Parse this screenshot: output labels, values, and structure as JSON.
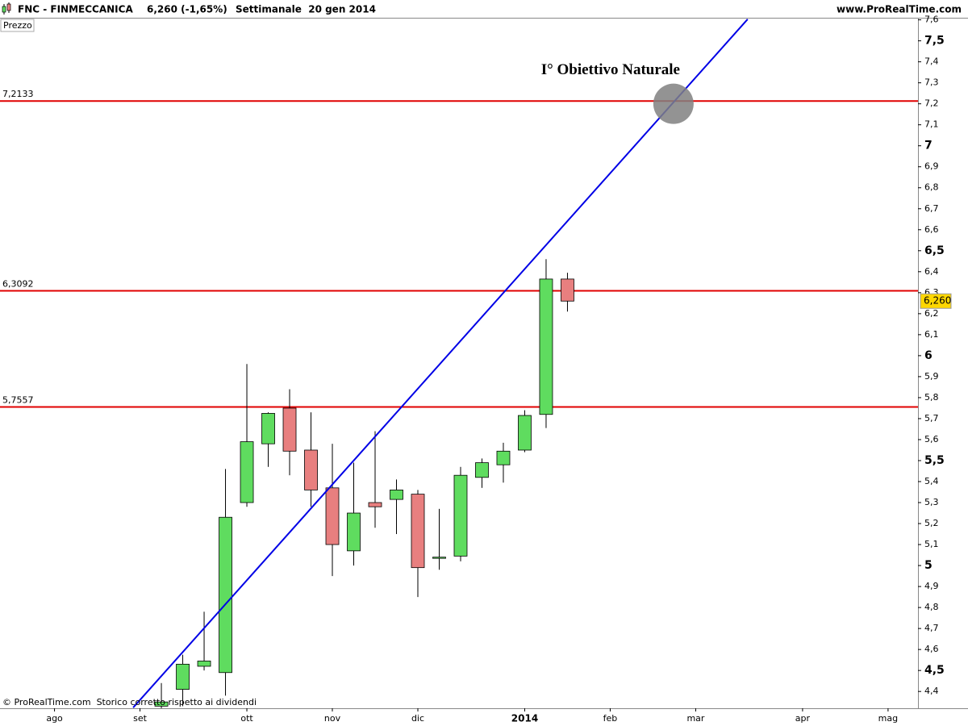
{
  "chart_data": {
    "type": "candlestick",
    "symbol": "FNC - FINMECCANICA",
    "quote": "6,260 (-1,65%)",
    "period": "Settimanale  20 gen 2014",
    "source": "www.ProRealTime.com",
    "y_label": "Prezzo",
    "footer": "© ProRealTime.com  Storico corretto rispetto ai dividendi",
    "categories": [
      null,
      null,
      null,
      null,
      null,
      null,
      null,
      null,
      null,
      null,
      null,
      null,
      null,
      null,
      null,
      null,
      null,
      null,
      null,
      null
    ],
    "open": [
      4.33,
      4.41,
      4.52,
      4.49,
      5.3,
      5.58,
      5.75,
      5.55,
      5.37,
      5.07,
      5.3,
      5.315,
      5.34,
      5.035,
      5.045,
      5.42,
      5.48,
      5.55,
      5.72,
      6.365
    ],
    "high": [
      4.44,
      4.575,
      4.78,
      5.46,
      5.96,
      5.73,
      5.84,
      5.73,
      5.58,
      5.49,
      5.64,
      5.41,
      5.36,
      5.27,
      5.47,
      5.51,
      5.585,
      5.74,
      6.46,
      6.395
    ],
    "low": [
      4.3,
      4.33,
      4.5,
      4.38,
      5.28,
      5.47,
      5.43,
      5.28,
      4.95,
      5.0,
      5.18,
      5.15,
      4.85,
      4.98,
      5.02,
      5.37,
      5.395,
      5.54,
      5.655,
      6.21
    ],
    "close": [
      4.35,
      4.53,
      4.545,
      5.23,
      5.59,
      5.725,
      5.545,
      5.36,
      5.1,
      5.25,
      5.28,
      5.36,
      4.99,
      5.04,
      5.43,
      5.49,
      5.545,
      5.715,
      6.365,
      6.26
    ],
    "up_color": "#5fdc5f",
    "down_color": "#e87f7f",
    "xlim": [
      -7.55,
      35.4
    ],
    "xticks": [
      {
        "value": -5,
        "label": "ago"
      },
      {
        "value": -1,
        "label": "set"
      },
      {
        "value": 4,
        "label": "ott"
      },
      {
        "value": 8,
        "label": "nov"
      },
      {
        "value": 12,
        "label": "dic"
      },
      {
        "value": 17,
        "label": "2014"
      },
      {
        "value": 21,
        "label": "feb"
      },
      {
        "value": 25,
        "label": "mar"
      },
      {
        "value": 30,
        "label": "apr"
      },
      {
        "value": 34,
        "label": "mag"
      }
    ],
    "ylim": [
      4.32,
      7.61
    ],
    "yticks": [
      {
        "value": 7.6,
        "label": "7,6"
      },
      {
        "value": 7.5,
        "label": "7,5"
      },
      {
        "value": 7.4,
        "label": "7,4"
      },
      {
        "value": 7.3,
        "label": "7,3"
      },
      {
        "value": 7.2,
        "label": "7,2"
      },
      {
        "value": 7.1,
        "label": "7,1"
      },
      7,
      {
        "value": 6.9,
        "label": "6,9"
      },
      {
        "value": 6.8,
        "label": "6,8"
      },
      {
        "value": 6.7,
        "label": "6,7"
      },
      {
        "value": 6.6,
        "label": "6,6"
      },
      {
        "value": 6.5,
        "label": "6,5"
      },
      {
        "value": 6.4,
        "label": "6,4"
      },
      {
        "value": 6.3,
        "label": "6,3"
      },
      {
        "value": 6.2,
        "label": "6,2"
      },
      {
        "value": 6.1,
        "label": "6,1"
      },
      6,
      {
        "value": 5.9,
        "label": "5,9"
      },
      {
        "value": 5.8,
        "label": "5,8"
      },
      {
        "value": 5.7,
        "label": "5,7"
      },
      {
        "value": 5.6,
        "label": "5,6"
      },
      {
        "value": 5.5,
        "label": "5,5"
      },
      {
        "value": 5.4,
        "label": "5,4"
      },
      {
        "value": 5.3,
        "label": "5,3"
      },
      {
        "value": 5.2,
        "label": "5,2"
      },
      {
        "value": 5.1,
        "label": "5,1"
      },
      5,
      {
        "value": 4.9,
        "label": "4,9"
      },
      {
        "value": 4.8,
        "label": "4,8"
      },
      {
        "value": 4.7,
        "label": "4,7"
      },
      {
        "value": 4.6,
        "label": "4,6"
      },
      {
        "value": 4.5,
        "label": "4,5"
      },
      {
        "value": 4.4,
        "label": "4,4"
      }
    ],
    "levels": {
      "color": "#e00000",
      "values": [
        7.2133,
        6.3092,
        5.7557
      ],
      "value_labels": [
        "7,2133",
        "6,3092",
        "5,7557"
      ]
    },
    "trendline": {
      "color": "#0000e6",
      "x": [
        -1.32,
        27.43
      ],
      "values": [
        4.323,
        7.603
      ]
    },
    "annotation": {
      "text": "I° Obiettivo Naturale",
      "x": 23.96,
      "y": 7.2,
      "color": "#808080"
    },
    "last_price": {
      "value": 6.26,
      "label": "6,260",
      "color": "#ffd700"
    }
  }
}
